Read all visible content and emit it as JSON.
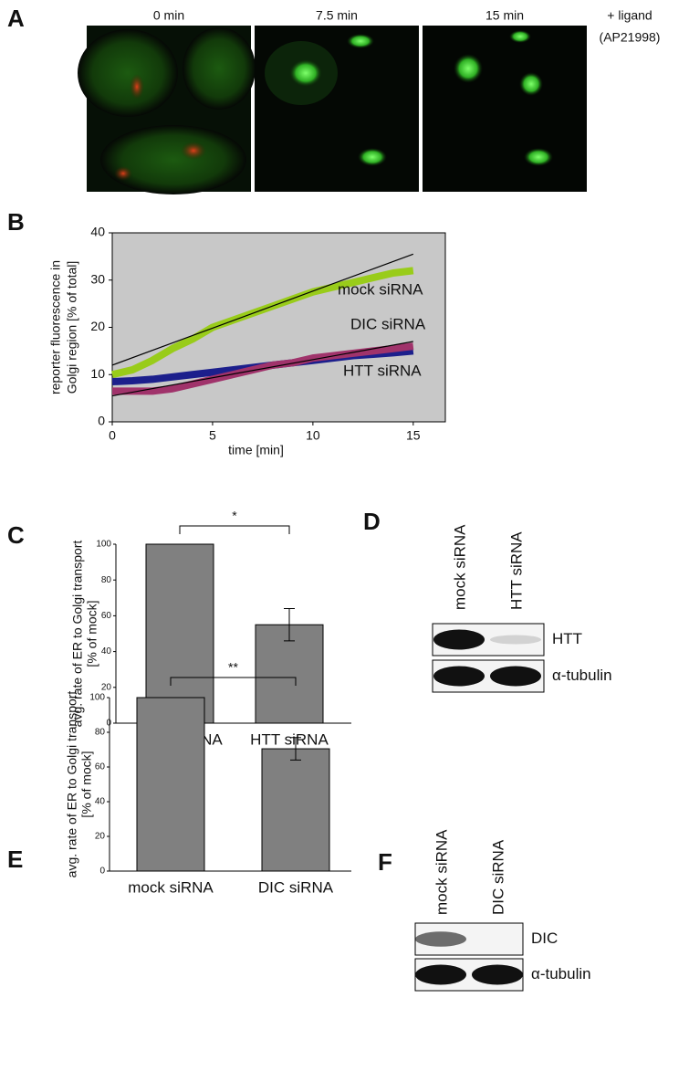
{
  "panel_labels": [
    "A",
    "B",
    "C",
    "D",
    "E",
    "F"
  ],
  "microscopy": {
    "timepoints": [
      "0 min",
      "7.5 min",
      "15 min"
    ],
    "treatment": [
      "+ ligand",
      "(AP21998)"
    ]
  },
  "chart_data": [
    {
      "type": "line",
      "xlabel": "time [min]",
      "ylabel": [
        "reporter fluorescence in",
        "Golgi region [% of total]"
      ],
      "xlim": [
        0,
        16.6
      ],
      "ylim": [
        0,
        40
      ],
      "xticks": [
        0,
        5,
        10,
        15
      ],
      "yticks": [
        0,
        10,
        20,
        30,
        40
      ],
      "series": [
        {
          "name": "mock siRNA",
          "color": "#99cc1a",
          "x": [
            0,
            1,
            2,
            3,
            4,
            5,
            6,
            7,
            8,
            9,
            10,
            11,
            12,
            13,
            14,
            15
          ],
          "values": [
            10,
            11,
            13,
            15.5,
            17.5,
            20,
            21.5,
            23,
            24.5,
            26,
            27.5,
            28.5,
            29.5,
            30.5,
            31.5,
            32
          ]
        },
        {
          "name": "DIC siRNA",
          "color": "#1c1f8c",
          "x": [
            0,
            1,
            2,
            3,
            4,
            5,
            6,
            7,
            8,
            9,
            10,
            11,
            12,
            13,
            14,
            15
          ],
          "values": [
            8.5,
            8.7,
            9,
            9.5,
            10,
            10.5,
            11,
            11.5,
            12,
            12.5,
            13,
            13.5,
            14,
            14.3,
            14.6,
            15
          ]
        },
        {
          "name": "HTT siRNA",
          "color": "#a0336b",
          "x": [
            0,
            1,
            2,
            3,
            4,
            5,
            6,
            7,
            8,
            9,
            10,
            11,
            12,
            13,
            14,
            15
          ],
          "values": [
            6.5,
            6.5,
            6.5,
            7,
            8,
            9,
            10,
            11,
            12,
            12.5,
            13.5,
            14,
            14.5,
            15,
            15.5,
            16
          ]
        },
        {
          "color": "#000000",
          "x": [
            0,
            15
          ],
          "values": [
            12,
            35.5
          ]
        },
        {
          "color": "#000000",
          "x": [
            0,
            15
          ],
          "values": [
            5.5,
            17
          ]
        }
      ]
    },
    {
      "type": "bar",
      "ylabel": [
        "avg. rate of ER to Golgi transport",
        "[% of mock]"
      ],
      "categories": [
        "mock siRNA",
        "HTT siRNA"
      ],
      "values": [
        100,
        55
      ],
      "errors": [
        null,
        9
      ],
      "color": "#808080",
      "ylim": [
        0,
        100
      ],
      "yticks": [
        0,
        20,
        40,
        60,
        80,
        100
      ],
      "significance": "*"
    },
    {
      "type": "bar",
      "ylabel": [
        "avg. rate of ER to Golgi transport",
        "[% of mock]"
      ],
      "categories": [
        "mock siRNA",
        "DIC siRNA"
      ],
      "values": [
        100,
        70.5
      ],
      "errors": [
        null,
        6.5
      ],
      "color": "#808080",
      "ylim": [
        0,
        100
      ],
      "yticks": [
        0,
        20,
        40,
        60,
        80,
        100
      ],
      "significance": "**"
    }
  ],
  "blots": [
    {
      "lanes": [
        "mock siRNA",
        "HTT siRNA"
      ],
      "rows": [
        "HTT",
        "α-tubulin"
      ]
    },
    {
      "lanes": [
        "mock siRNA",
        "DIC siRNA"
      ],
      "rows": [
        "DIC",
        "α-tubulin"
      ]
    }
  ]
}
